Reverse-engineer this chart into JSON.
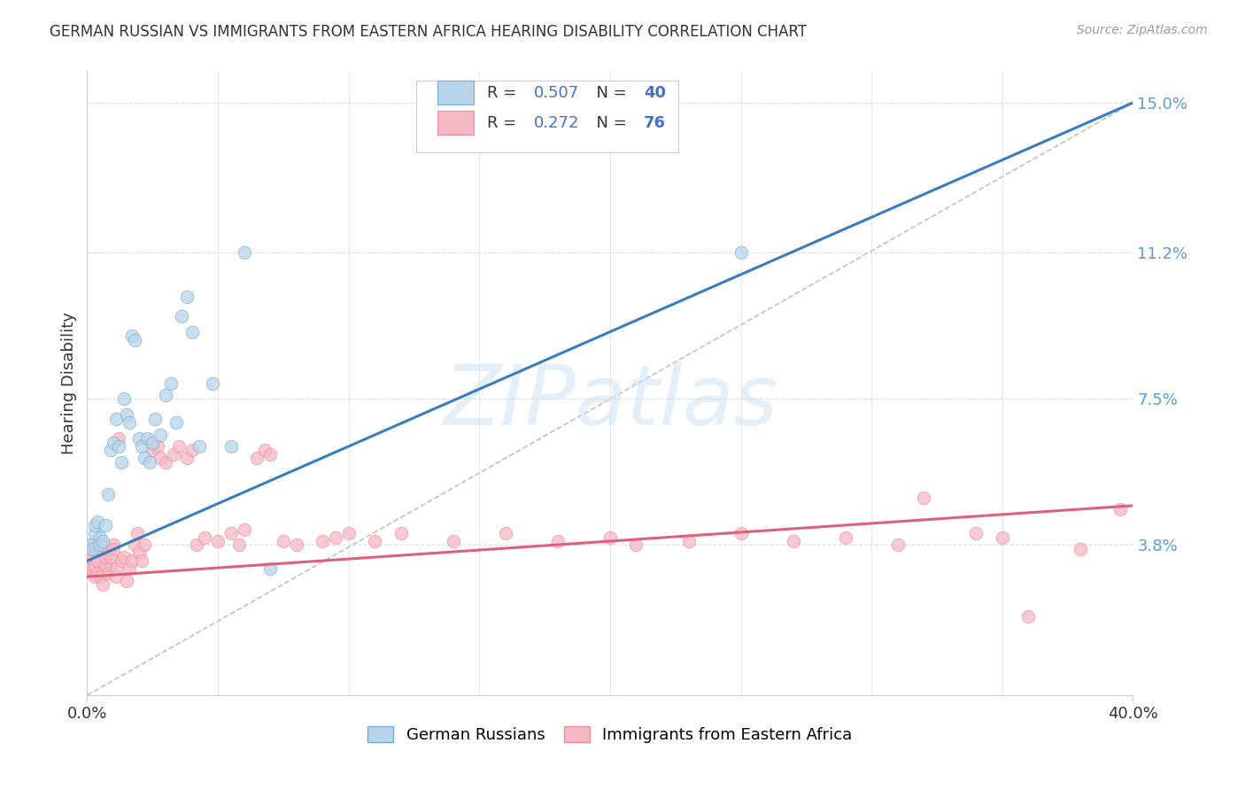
{
  "title": "GERMAN RUSSIAN VS IMMIGRANTS FROM EASTERN AFRICA HEARING DISABILITY CORRELATION CHART",
  "source": "Source: ZipAtlas.com",
  "ylabel": "Hearing Disability",
  "xlim": [
    0,
    0.4
  ],
  "ylim": [
    0,
    0.158
  ],
  "xticklabels": [
    "0.0%",
    "40.0%"
  ],
  "ytick_positions": [
    0.038,
    0.075,
    0.112,
    0.15
  ],
  "ytick_labels": [
    "3.8%",
    "7.5%",
    "11.2%",
    "15.0%"
  ],
  "blue_R": "0.507",
  "blue_N": "40",
  "pink_R": "0.272",
  "pink_N": "76",
  "blue_fill": "#b8d4ea",
  "blue_edge": "#7aacce",
  "pink_fill": "#f5b8c4",
  "pink_edge": "#e8909e",
  "blue_line_color": "#3a7dbf",
  "pink_line_color": "#e0607a",
  "legend_label_blue": "German Russians",
  "legend_label_pink": "Immigrants from Eastern Africa",
  "blue_scatter_x": [
    0.001,
    0.002,
    0.003,
    0.003,
    0.004,
    0.005,
    0.005,
    0.006,
    0.007,
    0.008,
    0.009,
    0.01,
    0.011,
    0.012,
    0.013,
    0.014,
    0.015,
    0.016,
    0.017,
    0.018,
    0.02,
    0.021,
    0.022,
    0.023,
    0.024,
    0.025,
    0.026,
    0.028,
    0.03,
    0.032,
    0.034,
    0.036,
    0.038,
    0.04,
    0.043,
    0.048,
    0.055,
    0.06,
    0.07,
    0.25
  ],
  "blue_scatter_y": [
    0.038,
    0.037,
    0.041,
    0.043,
    0.044,
    0.04,
    0.038,
    0.039,
    0.043,
    0.051,
    0.062,
    0.064,
    0.07,
    0.063,
    0.059,
    0.075,
    0.071,
    0.069,
    0.091,
    0.09,
    0.065,
    0.063,
    0.06,
    0.065,
    0.059,
    0.064,
    0.07,
    0.066,
    0.076,
    0.079,
    0.069,
    0.096,
    0.101,
    0.092,
    0.063,
    0.079,
    0.063,
    0.112,
    0.032,
    0.112
  ],
  "pink_scatter_x": [
    0.001,
    0.001,
    0.001,
    0.002,
    0.002,
    0.002,
    0.003,
    0.003,
    0.003,
    0.004,
    0.004,
    0.005,
    0.005,
    0.006,
    0.006,
    0.007,
    0.007,
    0.008,
    0.008,
    0.009,
    0.009,
    0.01,
    0.01,
    0.011,
    0.011,
    0.012,
    0.013,
    0.014,
    0.015,
    0.016,
    0.017,
    0.018,
    0.019,
    0.02,
    0.021,
    0.022,
    0.025,
    0.027,
    0.028,
    0.03,
    0.033,
    0.035,
    0.038,
    0.04,
    0.042,
    0.045,
    0.05,
    0.055,
    0.058,
    0.06,
    0.065,
    0.068,
    0.07,
    0.075,
    0.08,
    0.09,
    0.095,
    0.1,
    0.11,
    0.12,
    0.14,
    0.16,
    0.18,
    0.2,
    0.21,
    0.23,
    0.25,
    0.27,
    0.29,
    0.31,
    0.32,
    0.34,
    0.35,
    0.36,
    0.38,
    0.395
  ],
  "pink_scatter_y": [
    0.036,
    0.034,
    0.032,
    0.032,
    0.038,
    0.033,
    0.03,
    0.037,
    0.033,
    0.034,
    0.031,
    0.037,
    0.03,
    0.028,
    0.038,
    0.033,
    0.035,
    0.037,
    0.031,
    0.033,
    0.035,
    0.038,
    0.037,
    0.03,
    0.032,
    0.065,
    0.034,
    0.035,
    0.029,
    0.032,
    0.034,
    0.038,
    0.041,
    0.036,
    0.034,
    0.038,
    0.062,
    0.063,
    0.06,
    0.059,
    0.061,
    0.063,
    0.06,
    0.062,
    0.038,
    0.04,
    0.039,
    0.041,
    0.038,
    0.042,
    0.06,
    0.062,
    0.061,
    0.039,
    0.038,
    0.039,
    0.04,
    0.041,
    0.039,
    0.041,
    0.039,
    0.041,
    0.039,
    0.04,
    0.038,
    0.039,
    0.041,
    0.039,
    0.04,
    0.038,
    0.05,
    0.041,
    0.04,
    0.02,
    0.037,
    0.047
  ],
  "blue_line_x": [
    0.0,
    0.4
  ],
  "blue_line_y": [
    0.034,
    0.15
  ],
  "pink_line_x": [
    0.0,
    0.4
  ],
  "pink_line_y": [
    0.03,
    0.048
  ],
  "diag_line_x": [
    0.0,
    0.4
  ],
  "diag_line_y": [
    0.0,
    0.15
  ],
  "watermark_text": "ZIPatlas",
  "background_color": "#ffffff",
  "grid_color": "#dddddd",
  "text_color": "#333333",
  "ytick_color": "#5b9bd5",
  "legend_R_N_color": "#4472c4"
}
